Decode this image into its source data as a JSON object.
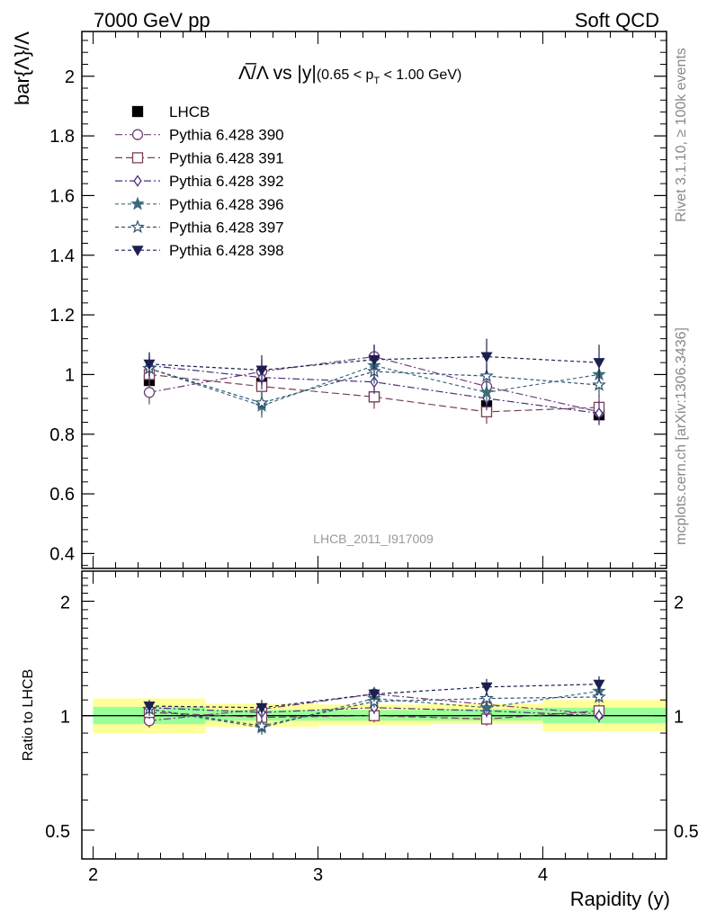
{
  "header": {
    "left": "7000 GeV pp",
    "right": "Soft QCD"
  },
  "side_labels": {
    "rivet": "Rivet 3.1.10, ≥ 100k events",
    "mcplots": "mcplots.cern.ch [arXiv:1306.3436]"
  },
  "watermark": "LHCB_2011_I917009",
  "colors": {
    "band_outer": "#ffff99",
    "band_inner": "#99ff99",
    "lhcb": "#000000",
    "p390": "#6e3f7a",
    "p391": "#7a3f57",
    "p392": "#4a2f80",
    "p396": "#3d6b7a",
    "p397": "#2f5270",
    "p398": "#1c2050"
  },
  "chart_data": [
    {
      "type": "scatter",
      "panel": "main",
      "title_main": "Λ̅/Λ vs |y|",
      "title_sub": "(0.65 < p",
      "title_sub_index": "T",
      "title_sub_tail": " < 1.00 GeV)",
      "ylabel": "bar{Λ}/Λ",
      "xlim": [
        1.95,
        4.55
      ],
      "ylim": [
        0.35,
        2.15
      ],
      "yticks": [
        0.4,
        0.6,
        0.8,
        1,
        1.2,
        1.4,
        1.6,
        1.8,
        2
      ],
      "ytick_labels": [
        "0.4",
        "0.6",
        "0.8",
        "1",
        "1.2",
        "1.4",
        "1.6",
        "1.8",
        "2"
      ],
      "x": [
        2.25,
        2.75,
        3.25,
        3.75,
        4.25
      ],
      "series": [
        {
          "name": "LHCB",
          "marker": "square-filled",
          "color_key": "lhcb",
          "dash": "none",
          "values": [
            0.98,
            0.97,
            0.925,
            0.895,
            0.865
          ],
          "err": [
            0.02,
            0.02,
            0.02,
            0.02,
            0.02
          ]
        },
        {
          "name": "Pythia 6.428 390",
          "marker": "circle-open",
          "color_key": "p390",
          "dash": "8,3,2,3",
          "values": [
            0.94,
            1.01,
            1.06,
            0.96,
            0.875
          ],
          "err": [
            0.04,
            0.04,
            0.04,
            0.04,
            0.04
          ]
        },
        {
          "name": "Pythia 6.428 391",
          "marker": "square-open",
          "color_key": "p391",
          "dash": "8,4",
          "values": [
            1.0,
            0.96,
            0.925,
            0.875,
            0.89
          ],
          "err": [
            0.04,
            0.04,
            0.04,
            0.04,
            0.04
          ]
        },
        {
          "name": "Pythia 6.428 392",
          "marker": "diamond-open",
          "color_key": "p392",
          "dash": "8,3,2,3",
          "values": [
            1.03,
            0.99,
            0.975,
            0.92,
            0.87
          ],
          "err": [
            0.04,
            0.04,
            0.04,
            0.04,
            0.04
          ]
        },
        {
          "name": "Pythia 6.428 396",
          "marker": "star-filled",
          "color_key": "p396",
          "dash": "4,3",
          "values": [
            1.02,
            0.895,
            1.03,
            0.94,
            1.0
          ],
          "err": [
            0.04,
            0.04,
            0.04,
            0.04,
            0.04
          ]
        },
        {
          "name": "Pythia 6.428 397",
          "marker": "star-open",
          "color_key": "p397",
          "dash": "4,3",
          "values": [
            1.02,
            0.905,
            1.01,
            0.995,
            0.965
          ],
          "err": [
            0.04,
            0.04,
            0.04,
            0.04,
            0.04
          ]
        },
        {
          "name": "Pythia 6.428 398",
          "marker": "triangle-down-filled",
          "color_key": "p398",
          "dash": "4,3",
          "values": [
            1.035,
            1.015,
            1.05,
            1.06,
            1.04
          ],
          "err": [
            0.04,
            0.05,
            0.05,
            0.06,
            0.06
          ]
        }
      ]
    },
    {
      "type": "scatter",
      "panel": "ratio",
      "ylabel": "Ratio to LHCB",
      "xlabel": "Rapidity (y)",
      "y_scale": "log",
      "xlim": [
        1.95,
        4.55
      ],
      "ylim": [
        0.42,
        2.4
      ],
      "xticks": [
        2,
        3,
        4
      ],
      "xtick_labels": [
        "2",
        "3",
        "4"
      ],
      "yticks": [
        0.5,
        1,
        2
      ],
      "ytick_labels": [
        "0.5",
        "1",
        "2"
      ],
      "x": [
        2.25,
        2.75,
        3.25,
        3.75,
        4.25
      ],
      "bands": {
        "bin_edges": [
          2.0,
          2.5,
          3.0,
          3.5,
          4.0,
          4.55
        ],
        "outer_lo": [
          0.9,
          0.935,
          0.945,
          0.95,
          0.91
        ],
        "outer_hi": [
          1.11,
          1.075,
          1.07,
          1.075,
          1.1
        ],
        "inner_lo": [
          0.95,
          0.97,
          0.97,
          0.97,
          0.955
        ],
        "inner_hi": [
          1.055,
          1.035,
          1.035,
          1.04,
          1.05
        ]
      },
      "series": [
        {
          "name": "LHCB",
          "color_key": "lhcb",
          "dash": "none",
          "marker": "none",
          "values": [
            1.0,
            1.0,
            1.0,
            1.0,
            1.0
          ]
        },
        {
          "name": "Pythia 6.428 390",
          "marker": "circle-open",
          "color_key": "p390",
          "dash": "8,3,2,3",
          "values": [
            0.97,
            1.04,
            1.14,
            1.07,
            1.01
          ],
          "err": [
            0.04,
            0.04,
            0.04,
            0.04,
            0.04
          ]
        },
        {
          "name": "Pythia 6.428 391",
          "marker": "square-open",
          "color_key": "p391",
          "dash": "8,4",
          "values": [
            1.02,
            0.99,
            1.0,
            0.98,
            1.03
          ],
          "err": [
            0.04,
            0.04,
            0.04,
            0.04,
            0.04
          ]
        },
        {
          "name": "Pythia 6.428 392",
          "marker": "diamond-open",
          "color_key": "p392",
          "dash": "8,3,2,3",
          "values": [
            1.05,
            1.02,
            1.05,
            1.03,
            1.0
          ],
          "err": [
            0.04,
            0.04,
            0.04,
            0.04,
            0.04
          ]
        },
        {
          "name": "Pythia 6.428 396",
          "marker": "star-filled",
          "color_key": "p396",
          "dash": "4,3",
          "values": [
            1.04,
            0.93,
            1.11,
            1.05,
            1.16
          ],
          "err": [
            0.04,
            0.04,
            0.04,
            0.04,
            0.04
          ]
        },
        {
          "name": "Pythia 6.428 397",
          "marker": "star-open",
          "color_key": "p397",
          "dash": "4,3",
          "values": [
            1.04,
            0.94,
            1.09,
            1.11,
            1.12
          ],
          "err": [
            0.04,
            0.04,
            0.04,
            0.04,
            0.04
          ]
        },
        {
          "name": "Pythia 6.428 398",
          "marker": "triangle-down-filled",
          "color_key": "p398",
          "dash": "4,3",
          "values": [
            1.06,
            1.05,
            1.14,
            1.19,
            1.21
          ],
          "err": [
            0.04,
            0.05,
            0.05,
            0.06,
            0.06
          ]
        }
      ]
    }
  ]
}
